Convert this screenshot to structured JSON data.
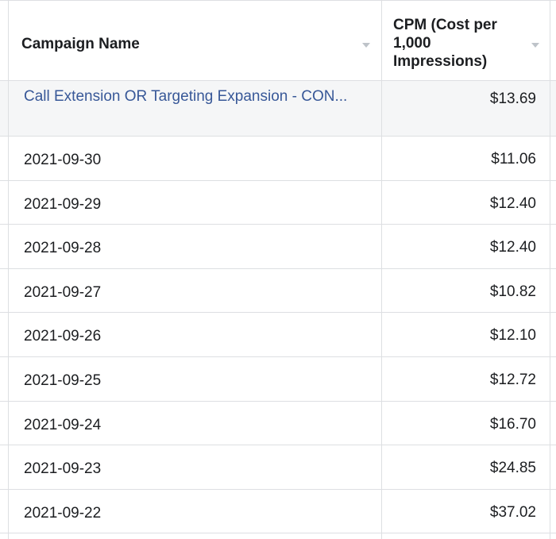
{
  "table": {
    "columns": {
      "campaign_name": "Campaign Name",
      "cpm": "CPM (Cost per 1,000 Impressions)"
    },
    "summary_row": {
      "campaign_name": "Call Extension OR Targeting Expansion - CON...",
      "cpm": "$13.69"
    },
    "rows": [
      {
        "date": "2021-09-30",
        "cpm": "$11.06"
      },
      {
        "date": "2021-09-29",
        "cpm": "$12.40"
      },
      {
        "date": "2021-09-28",
        "cpm": "$12.40"
      },
      {
        "date": "2021-09-27",
        "cpm": "$10.82"
      },
      {
        "date": "2021-09-26",
        "cpm": "$12.10"
      },
      {
        "date": "2021-09-25",
        "cpm": "$12.72"
      },
      {
        "date": "2021-09-24",
        "cpm": "$16.70"
      },
      {
        "date": "2021-09-23",
        "cpm": "$24.85"
      },
      {
        "date": "2021-09-22",
        "cpm": "$37.02"
      }
    ]
  },
  "colors": {
    "link": "#385898",
    "border": "#dddfe2",
    "summary_bg": "#f5f6f7"
  }
}
